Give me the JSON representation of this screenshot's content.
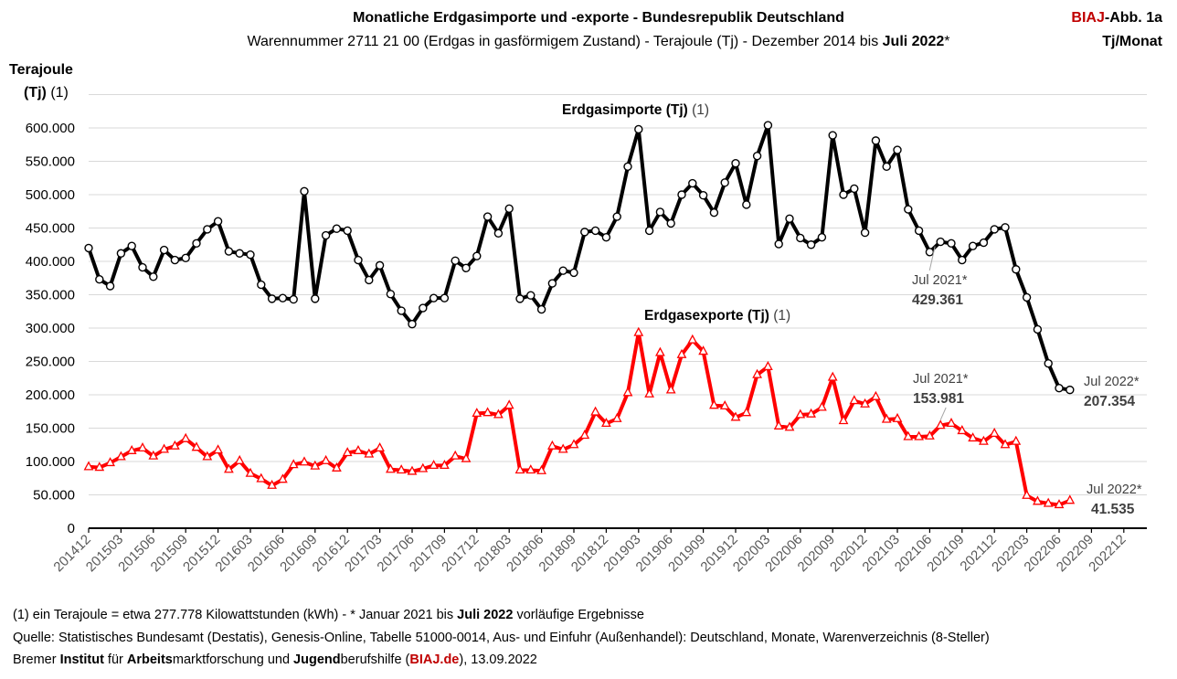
{
  "header": {
    "title": "Monatliche Erdgasimporte und -exporte - Bundesrepublik Deutschland",
    "subtitle_prefix": "Warennummer 2711 21 00  (Erdgas in gasförmigem Zustand) - Terajoule (Tj) - Dezember 2014 bis ",
    "subtitle_bold": "Juli 2022",
    "subtitle_suffix": "*",
    "badge_red": "BIAJ",
    "badge_rest": "-Abb. 1a",
    "unit": "Tj/Monat"
  },
  "yaxis_title": {
    "line1": "Terajoule",
    "line2_bold": "(Tj)",
    "line2_rest": " (1)"
  },
  "footer": {
    "line1_prefix": "(1) ein Terajoule = etwa 277.778 Kilowattstunden (kWh)  - * Januar 2021 bis ",
    "line1_bold": "Juli 2022",
    "line1_suffix": " vorläufige Ergebnisse",
    "line2": "Quelle: Statistisches Bundesamt (Destatis), Genesis-Online, Tabelle 51000-0014, Aus- und Einfuhr (Außenhandel): Deutschland, Monate, Warenverzeichnis (8-Steller)",
    "line3_a": "Bremer ",
    "line3_b": "Institut",
    "line3_c": " für ",
    "line3_d": "Arbeits",
    "line3_e": "marktforschung und ",
    "line3_f": "Jugend",
    "line3_g": "berufshilfe (",
    "line3_h": "BIAJ.de",
    "line3_i": "), 13.09.2022"
  },
  "chart_data": {
    "type": "line",
    "x_start": "201412",
    "x_axis_end": "202212",
    "xtick_labels": [
      "201412",
      "201503",
      "201506",
      "201509",
      "201512",
      "201603",
      "201606",
      "201609",
      "201612",
      "201703",
      "201706",
      "201709",
      "201712",
      "201803",
      "201806",
      "201809",
      "201812",
      "201903",
      "201906",
      "201909",
      "201912",
      "202003",
      "202006",
      "202009",
      "202012",
      "202103",
      "202106",
      "202109",
      "202112",
      "202203",
      "202206",
      "202209",
      "202212"
    ],
    "ytick_labels": [
      "0",
      "50.000",
      "100.000",
      "150.000",
      "200.000",
      "250.000",
      "300.000",
      "350.000",
      "400.000",
      "450.000",
      "500.000",
      "550.000",
      "600.000"
    ],
    "ylim": [
      0,
      650000
    ],
    "ystep": 50000,
    "grid": "horizontal",
    "colors": {
      "imports": "#000000",
      "exports": "#ff0000"
    },
    "series": [
      {
        "name": "Erdgasimporte (Tj) (1)",
        "marker": "circle",
        "values": [
          420000,
          373000,
          363000,
          412000,
          423000,
          391000,
          377000,
          417000,
          402000,
          405000,
          427000,
          448000,
          460000,
          415000,
          412000,
          410000,
          365000,
          344000,
          345000,
          343000,
          505000,
          344000,
          439000,
          449000,
          446000,
          402000,
          372000,
          394000,
          351000,
          326000,
          306000,
          330000,
          345000,
          345000,
          401000,
          390000,
          408000,
          467000,
          442000,
          479000,
          344000,
          349000,
          328000,
          367000,
          386000,
          383000,
          444000,
          446000,
          436000,
          467000,
          542000,
          598000,
          446000,
          474000,
          457000,
          500000,
          517000,
          499000,
          473000,
          518000,
          547000,
          485000,
          558000,
          604000,
          426000,
          464000,
          435000,
          425000,
          436000,
          589000,
          500000,
          509000,
          443000,
          581000,
          542000,
          567000,
          478000,
          446000,
          414000,
          429361,
          427000,
          402000,
          423000,
          428000,
          448000,
          451000,
          388000,
          346000,
          298000,
          247000,
          210000,
          207354
        ]
      },
      {
        "name": "Erdgasexporte (Tj) (1)",
        "marker": "triangle",
        "values": [
          92000,
          91000,
          98000,
          107000,
          116000,
          120000,
          108000,
          118000,
          123000,
          134000,
          121000,
          107000,
          117000,
          88000,
          101000,
          82000,
          74000,
          64000,
          73000,
          95000,
          99000,
          93000,
          101000,
          90000,
          113000,
          116000,
          111000,
          120000,
          88000,
          87000,
          85000,
          89000,
          94000,
          94000,
          108000,
          104000,
          172000,
          173000,
          170000,
          184000,
          87000,
          87000,
          86000,
          123000,
          118000,
          125000,
          139000,
          174000,
          157000,
          164000,
          203000,
          293000,
          201000,
          263000,
          207000,
          260000,
          282000,
          265000,
          184000,
          183000,
          166000,
          173000,
          230000,
          242000,
          153000,
          151000,
          170000,
          171000,
          181000,
          226000,
          161000,
          191000,
          186000,
          197000,
          163000,
          164000,
          137000,
          137000,
          138000,
          153981,
          157000,
          146000,
          135000,
          130000,
          142000,
          125000,
          130000,
          49000,
          40000,
          37000,
          35000,
          41535
        ]
      }
    ],
    "annotations": {
      "imports_label": "Erdgasimporte (Tj) (1)",
      "imports_label_bold": "Erdgasimporte (Tj)",
      "imports_label_rest": " (1)",
      "exports_label_bold": "Erdgasexporte (Tj)",
      "exports_label_rest": " (1)",
      "imp_jul21_date": "Jul 2021*",
      "imp_jul21_value": "429.361",
      "exp_jul21_date": "Jul 2021*",
      "exp_jul21_value": "153.981",
      "imp_jul22_date": "Jul 2022*",
      "imp_jul22_value": "207.354",
      "exp_jul22_date": "Jul 2022*",
      "exp_jul22_value": "41.535"
    }
  }
}
